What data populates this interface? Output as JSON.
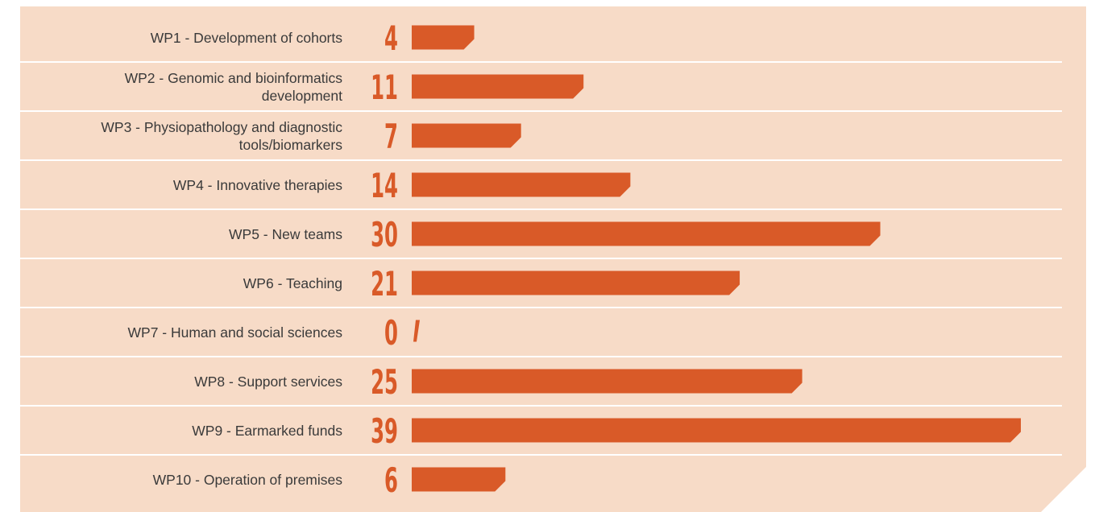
{
  "chart_data": {
    "type": "bar",
    "categories": [
      "WP1 - Development of cohorts",
      "WP2 - Genomic and bioinformatics development",
      "WP3 - Physiopathology and diagnostic tools/biomarkers",
      "WP4 - Innovative therapies",
      "WP5 - New teams",
      "WP6 - Teaching",
      "WP7 - Human and social sciences",
      "WP8 - Support services",
      "WP9 - Earmarked funds",
      "WP10 - Operation of premises"
    ],
    "values": [
      4,
      11,
      7,
      14,
      30,
      21,
      0,
      25,
      39,
      6
    ],
    "color": "#d95a28"
  }
}
